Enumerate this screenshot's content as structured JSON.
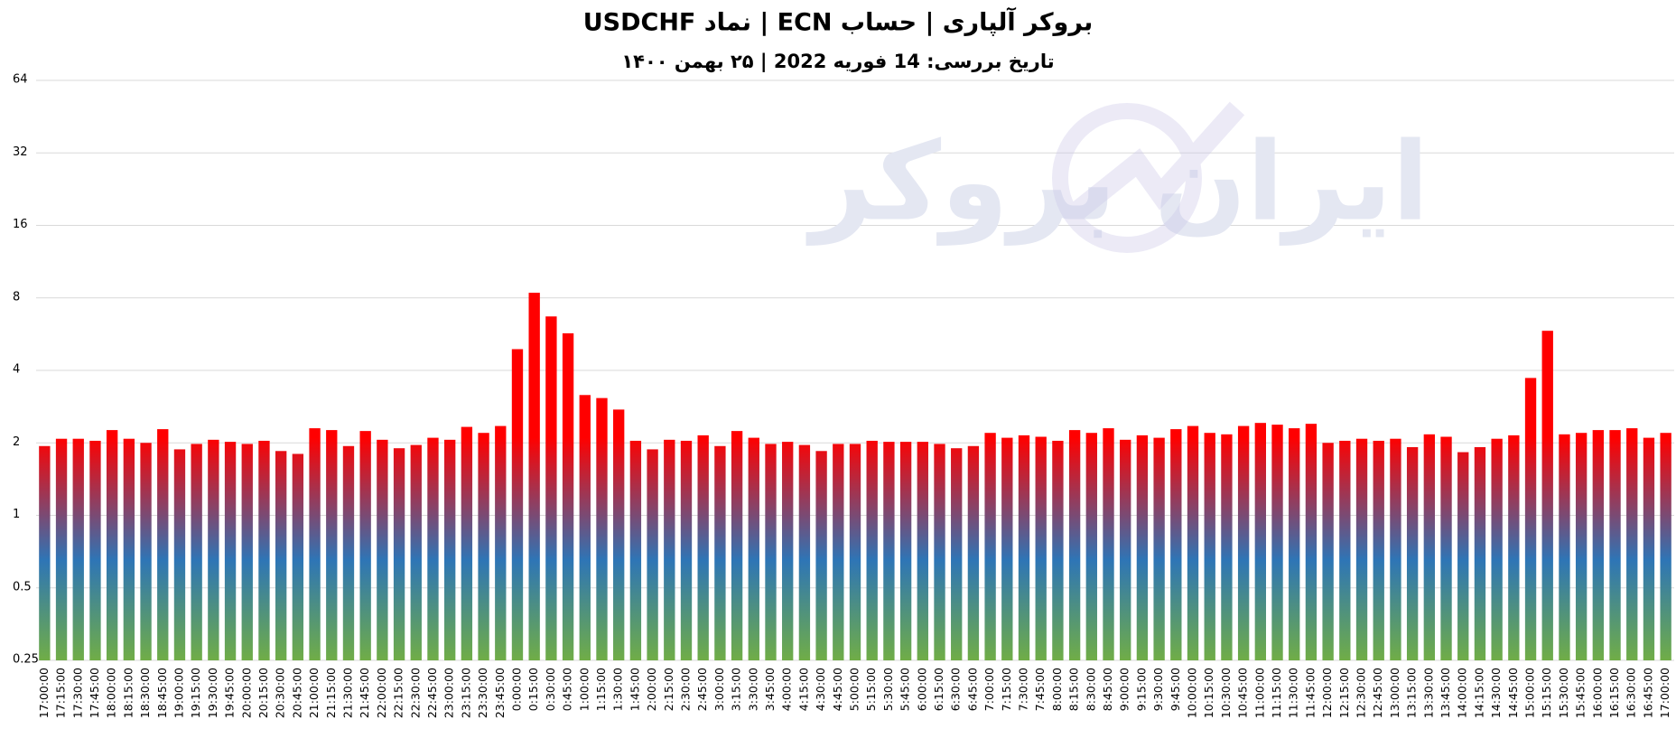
{
  "chart_data": {
    "type": "bar",
    "title": "بروکر آلپاری | حساب ECN | نماد USDCHF",
    "subtitle": "تاریخ بررسی: 14 فوریه 2022 | ۲۵ بهمن ۱۴۰۰",
    "watermark": "ایران بروکر",
    "categories": [
      "17:00:00",
      "17:15:00",
      "17:30:00",
      "17:45:00",
      "18:00:00",
      "18:15:00",
      "18:30:00",
      "18:45:00",
      "19:00:00",
      "19:15:00",
      "19:30:00",
      "19:45:00",
      "20:00:00",
      "20:15:00",
      "20:30:00",
      "20:45:00",
      "21:00:00",
      "21:15:00",
      "21:30:00",
      "21:45:00",
      "22:00:00",
      "22:15:00",
      "22:30:00",
      "22:45:00",
      "23:00:00",
      "23:15:00",
      "23:30:00",
      "23:45:00",
      "0:00:00",
      "0:15:00",
      "0:30:00",
      "0:45:00",
      "1:00:00",
      "1:15:00",
      "1:30:00",
      "1:45:00",
      "2:00:00",
      "2:15:00",
      "2:30:00",
      "2:45:00",
      "3:00:00",
      "3:15:00",
      "3:30:00",
      "3:45:00",
      "4:00:00",
      "4:15:00",
      "4:30:00",
      "4:45:00",
      "5:00:00",
      "5:15:00",
      "5:30:00",
      "5:45:00",
      "6:00:00",
      "6:15:00",
      "6:30:00",
      "6:45:00",
      "7:00:00",
      "7:15:00",
      "7:30:00",
      "7:45:00",
      "8:00:00",
      "8:15:00",
      "8:30:00",
      "8:45:00",
      "9:00:00",
      "9:15:00",
      "9:30:00",
      "9:45:00",
      "10:00:00",
      "10:15:00",
      "10:30:00",
      "10:45:00",
      "11:00:00",
      "11:15:00",
      "11:30:00",
      "11:45:00",
      "12:00:00",
      "12:15:00",
      "12:30:00",
      "12:45:00",
      "13:00:00",
      "13:15:00",
      "13:30:00",
      "13:45:00",
      "14:00:00",
      "14:15:00",
      "14:30:00",
      "14:45:00",
      "15:00:00",
      "15:15:00",
      "15:30:00",
      "15:45:00",
      "16:00:00",
      "16:15:00",
      "16:30:00",
      "16:45:00",
      "17:00:00"
    ],
    "values": [
      1.94,
      2.08,
      2.08,
      2.04,
      2.26,
      2.08,
      2.0,
      2.28,
      1.88,
      1.98,
      2.06,
      2.02,
      1.98,
      2.04,
      1.85,
      1.8,
      2.3,
      2.26,
      1.94,
      2.24,
      2.06,
      1.9,
      1.96,
      2.1,
      2.06,
      2.33,
      2.2,
      2.35,
      4.9,
      8.4,
      6.7,
      5.7,
      3.16,
      3.07,
      2.75,
      2.04,
      1.88,
      2.06,
      2.04,
      2.15,
      1.94,
      2.24,
      2.1,
      1.98,
      2.02,
      1.96,
      1.85,
      1.98,
      1.98,
      2.04,
      2.02,
      2.02,
      2.02,
      1.98,
      1.9,
      1.94,
      2.2,
      2.1,
      2.15,
      2.12,
      2.04,
      2.26,
      2.2,
      2.3,
      2.06,
      2.15,
      2.1,
      2.28,
      2.35,
      2.2,
      2.17,
      2.35,
      2.42,
      2.38,
      2.3,
      2.4,
      2.0,
      2.04,
      2.08,
      2.04,
      2.08,
      1.92,
      2.17,
      2.12,
      1.83,
      1.92,
      2.08,
      2.15,
      3.72,
      5.84,
      2.17,
      2.2,
      2.26,
      2.26,
      2.3,
      2.1,
      2.2
    ],
    "gradient": [
      "#ff0000",
      "#2e75b6",
      "#70ad47"
    ],
    "log_scale": true,
    "ylim": [
      0.25,
      64
    ],
    "yticks": [
      0.25,
      0.5,
      1,
      2,
      4,
      8,
      16,
      32,
      64
    ],
    "grid": true
  }
}
